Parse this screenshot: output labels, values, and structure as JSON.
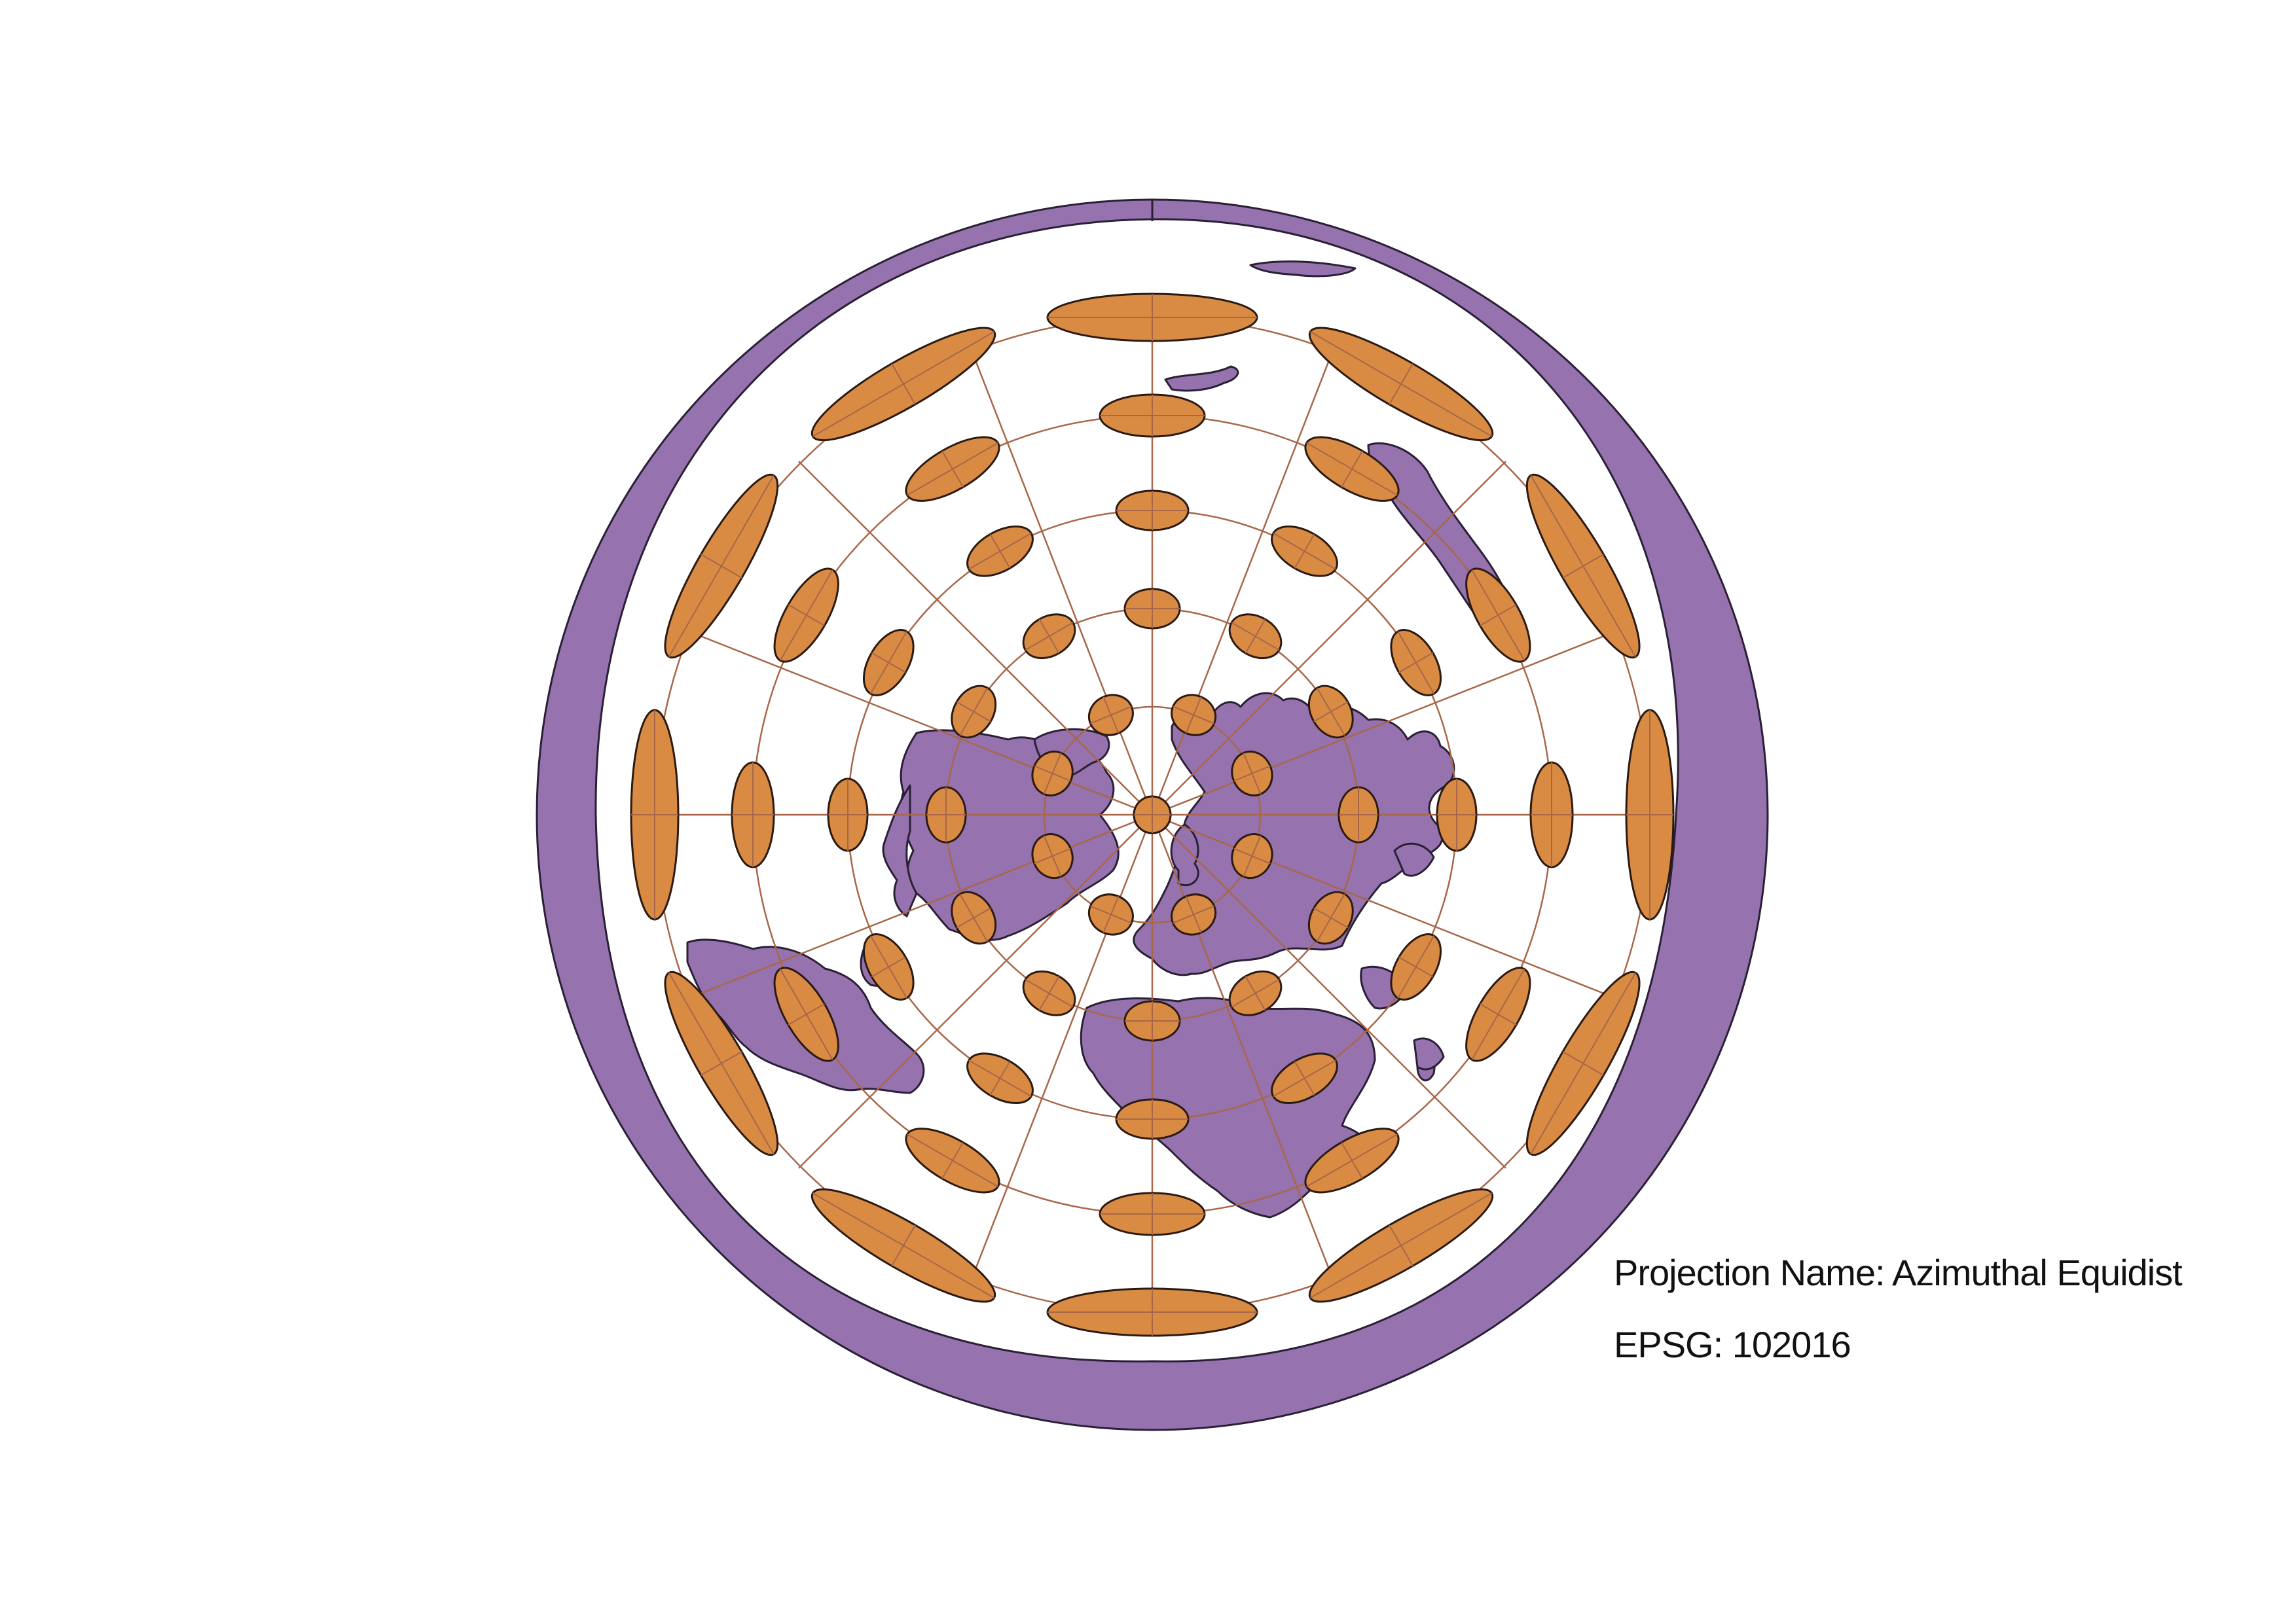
{
  "map": {
    "projection_label": "Projection Name",
    "projection_value": "Azimuthal Equidist",
    "epsg_label": "EPSG",
    "epsg_value": "102016",
    "separator": ":"
  },
  "colors": {
    "land": "#9672AE",
    "ocean": "#ffffff",
    "ring": "#9672AE",
    "ellipse_fill": "#D98B43",
    "ellipse_stroke": "#2b1a12",
    "graticule": "#A8674A",
    "outline": "#2a2036"
  },
  "icons": [
    "tissot-ellipse",
    "graticule",
    "land-mass"
  ]
}
